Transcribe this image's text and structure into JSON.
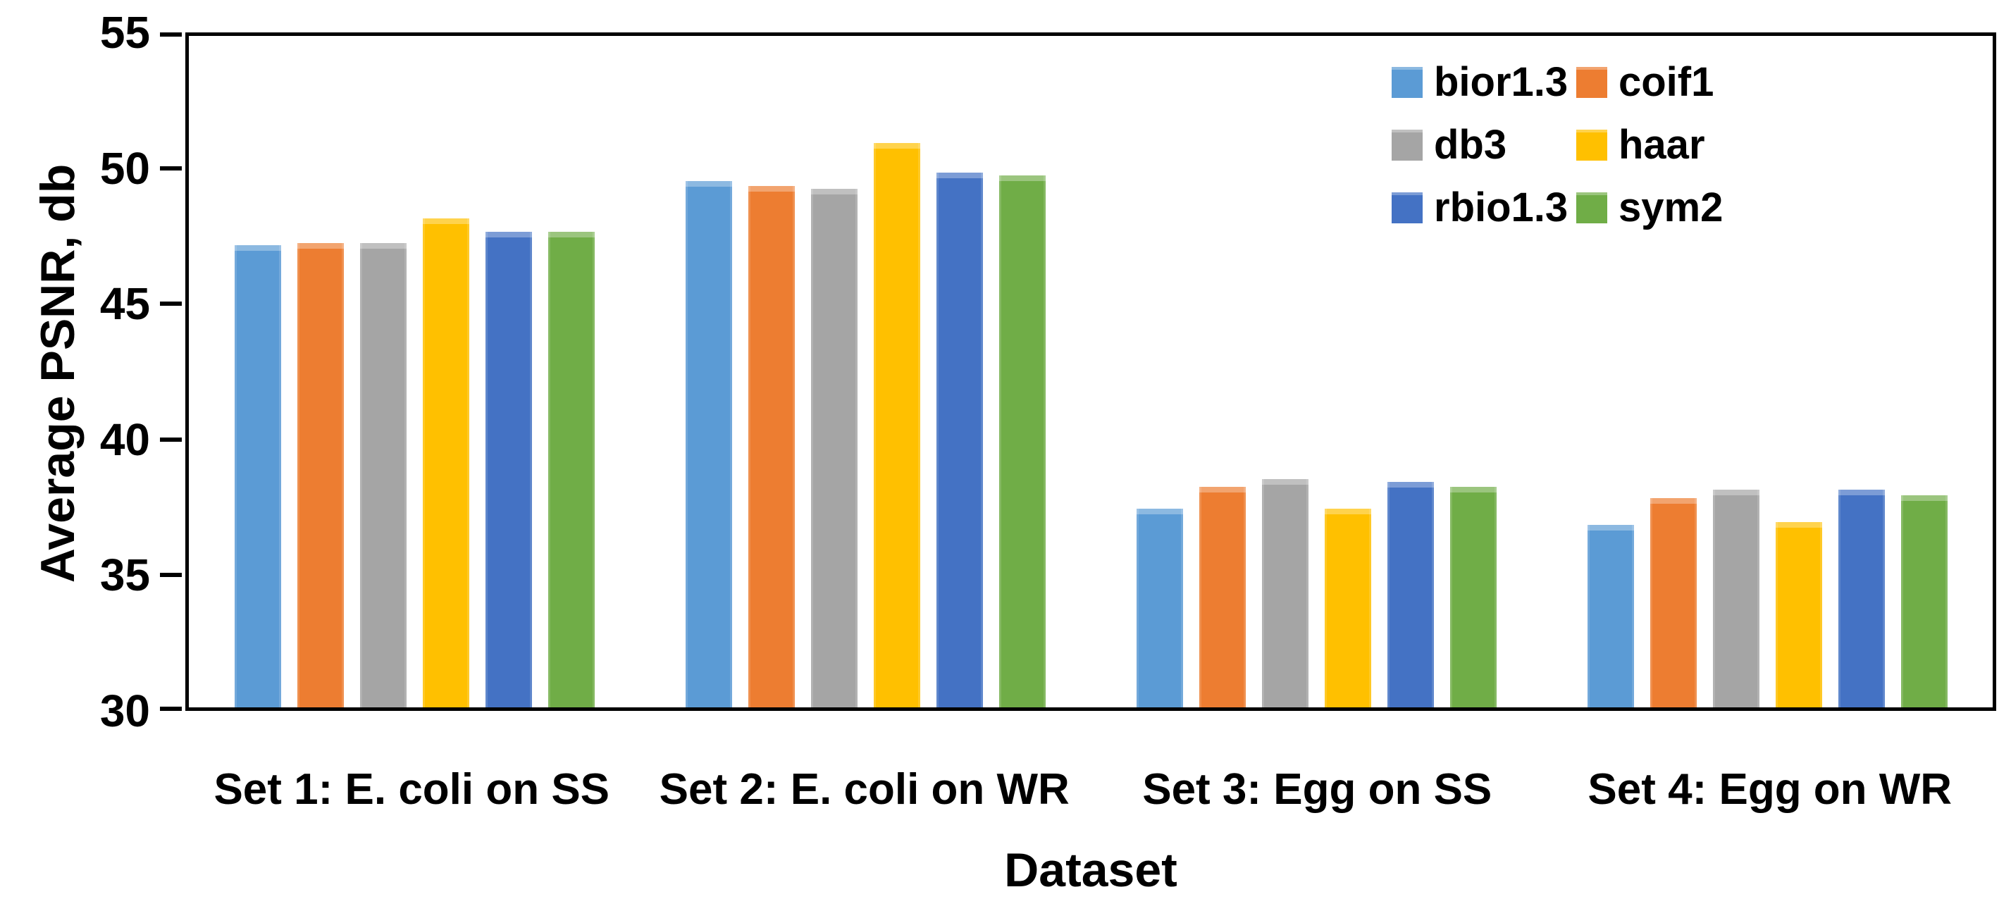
{
  "figure": {
    "background": "#ffffff",
    "frame_color": "#000000",
    "text_color": "#000000"
  },
  "chart_data": {
    "type": "bar",
    "title": "",
    "xlabel": "Dataset",
    "ylabel": "Average PSNR, db",
    "ylim": [
      30,
      55
    ],
    "yticks": [
      30,
      35,
      40,
      45,
      50,
      55
    ],
    "grid": false,
    "legend_position": "top-right",
    "categories": [
      "Set 1: E. coli on SS",
      "Set 2: E. coli on WR",
      "Set 3: Egg on SS",
      "Set 4: Egg on WR"
    ],
    "series": [
      {
        "name": "bior1.3",
        "color": "#5B9BD5",
        "values": [
          47.2,
          49.6,
          37.4,
          36.8
        ]
      },
      {
        "name": "coif1",
        "color": "#ED7D31",
        "values": [
          47.3,
          49.4,
          38.2,
          37.8
        ]
      },
      {
        "name": "db3",
        "color": "#A5A5A5",
        "values": [
          47.3,
          49.3,
          38.5,
          38.1
        ]
      },
      {
        "name": "haar",
        "color": "#FFC000",
        "values": [
          48.2,
          51.0,
          37.4,
          36.9
        ]
      },
      {
        "name": "rbio1.3",
        "color": "#4472C4",
        "values": [
          47.7,
          49.9,
          38.4,
          38.1
        ]
      },
      {
        "name": "sym2",
        "color": "#70AD47",
        "values": [
          47.7,
          49.8,
          38.2,
          37.9
        ]
      }
    ]
  }
}
